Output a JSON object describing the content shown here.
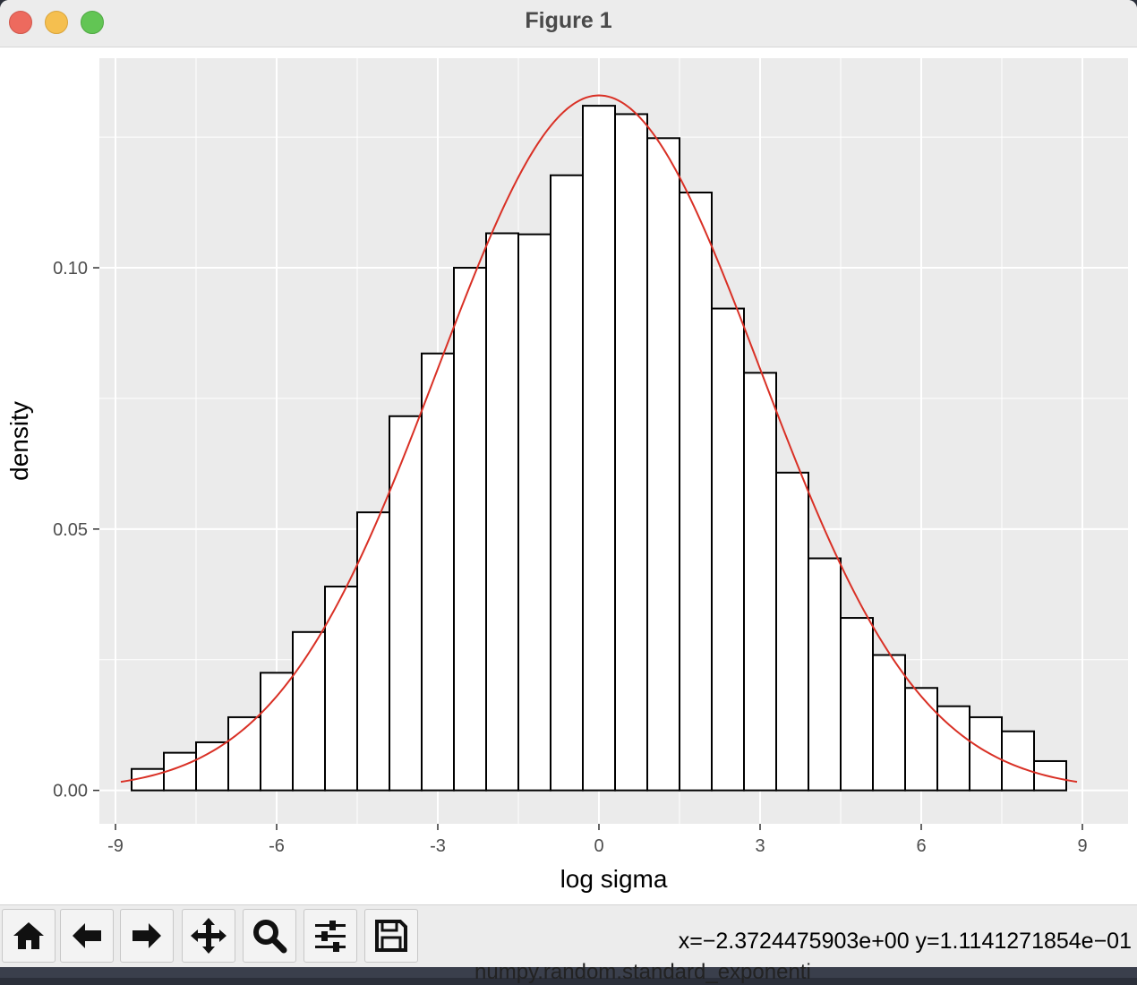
{
  "window": {
    "title": "Figure 1"
  },
  "toolbar": {
    "buttons": [
      {
        "name": "home-button",
        "icon": "home-icon"
      },
      {
        "name": "back-button",
        "icon": "arrow-left-icon"
      },
      {
        "name": "forward-button",
        "icon": "arrow-right-icon"
      },
      {
        "name": "pan-button",
        "icon": "move-icon"
      },
      {
        "name": "zoom-button",
        "icon": "magnifier-icon"
      },
      {
        "name": "configure-subplots-button",
        "icon": "sliders-icon"
      },
      {
        "name": "save-button",
        "icon": "floppy-disk-icon"
      }
    ],
    "coords": "x=−2.3724475903e+00 y=1.1141271854e−01"
  },
  "background_text": "numpy.random.standard_exponenti",
  "colors": {
    "panel": "#ebebeb",
    "grid": "#ffffff",
    "bar_fill": "#ffffff",
    "bar_edge": "#000000",
    "curve": "#d93025"
  },
  "chart_data": {
    "type": "bar",
    "title": "",
    "xlabel": "log sigma",
    "ylabel": "density",
    "xlim": [
      -9.3,
      9.85
    ],
    "ylim": [
      -0.0064,
      0.1401
    ],
    "xticks": [
      -9,
      -6,
      -3,
      0,
      3,
      6,
      9
    ],
    "xtick_labels": [
      "-9",
      "-6",
      "-3",
      "0",
      "3",
      "6",
      "9"
    ],
    "yticks": [
      0.0,
      0.05,
      0.1
    ],
    "ytick_labels": [
      "0.00",
      "0.05",
      "0.10"
    ],
    "grid": true,
    "bins": {
      "start": -8.7,
      "width": 0.6,
      "values": [
        0.0041,
        0.0072,
        0.0092,
        0.014,
        0.0225,
        0.0303,
        0.039,
        0.0532,
        0.0716,
        0.0836,
        0.1,
        0.1066,
        0.1064,
        0.1177,
        0.131,
        0.1294,
        0.1248,
        0.1144,
        0.0922,
        0.0799,
        0.0608,
        0.0444,
        0.033,
        0.0259,
        0.0196,
        0.0161,
        0.014,
        0.0113,
        0.0056
      ]
    },
    "curve": {
      "type": "normal",
      "mean": 0.0,
      "sd": 3.0,
      "x_range": [
        -8.9,
        8.9
      ]
    }
  }
}
